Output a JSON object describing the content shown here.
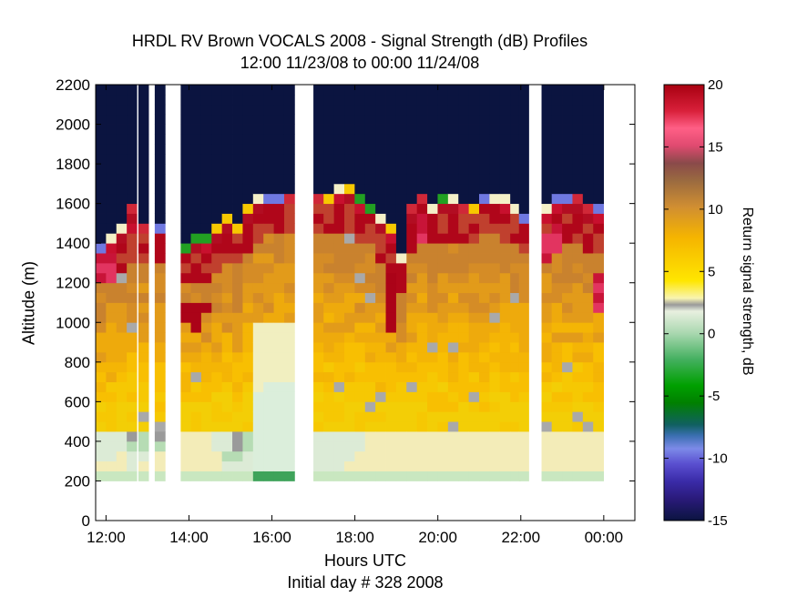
{
  "chart_data": {
    "type": "heatmap",
    "title": "HRDL RV Brown VOCALS 2008 - Signal Strength (dB) Profiles",
    "subtitle": "12:00 11/23/08 to 00:00 11/24/08",
    "xlabel": "Hours UTC",
    "xlabel2": "Initial day # 328  2008",
    "ylabel": "Altitude (m)",
    "x_unit": "hours UTC (elapsed from 12:00 11/23/08)",
    "xlim": [
      11.75,
      24.75
    ],
    "ylim": [
      0,
      2200
    ],
    "x_ticks": [
      12,
      14,
      16,
      18,
      20,
      22,
      24
    ],
    "x_tick_labels": [
      "12:00",
      "14:00",
      "16:00",
      "18:00",
      "20:00",
      "22:00",
      "00:00"
    ],
    "y_ticks": [
      0,
      200,
      400,
      600,
      800,
      1000,
      1200,
      1400,
      1600,
      1800,
      2000,
      2200
    ],
    "colorbar": {
      "label": "Return signal strength, dB",
      "range": [
        -15,
        20
      ],
      "ticks": [
        -15,
        -10,
        -5,
        0,
        5,
        10,
        15,
        20
      ]
    },
    "gate_bottom_m": 200,
    "gate_top_m": 2200,
    "gate_height_m": 50,
    "profile_width_h": 0.25,
    "gaps_h": [
      [
        12.75,
        12.78
      ],
      [
        13.13,
        13.16
      ],
      [
        13.5,
        13.8
      ],
      [
        16.75,
        17.0
      ],
      [
        22.2,
        22.5
      ],
      [
        24.1,
        24.2
      ]
    ],
    "profiles": [
      {
        "t": 11.875,
        "top": 1400,
        "pbl": 1330,
        "dip": [],
        "sfc": [
          0,
          0,
          1,
          1
        ],
        "cloud": [
          1180,
          1340
        ],
        "pure": false
      },
      {
        "t": 12.125,
        "top": 1430,
        "pbl": 1350,
        "dip": [],
        "sfc": [
          0,
          0,
          1,
          1
        ],
        "cloud": [
          1220,
          1360
        ],
        "pure": false
      },
      {
        "t": 12.375,
        "top": 1470,
        "pbl": 1400,
        "dip": [],
        "sfc": [
          0,
          0,
          0,
          1
        ],
        "cloud": [],
        "pure": false
      },
      {
        "t": 12.625,
        "top": 1580,
        "pbl": 1450,
        "dip": [],
        "sfc": [
          0,
          1,
          1,
          2
        ],
        "cloud": [],
        "pure": false
      },
      {
        "t": 12.9,
        "top": 1500,
        "pbl": 1440,
        "dip": [],
        "sfc": [
          0,
          0,
          1,
          2
        ],
        "cloud": [],
        "pure": false
      },
      {
        "t": 13.3,
        "top": 1490,
        "pbl": 1430,
        "dip": [],
        "sfc": [
          0,
          0,
          0,
          2
        ],
        "cloud": [],
        "pure": false
      },
      {
        "t": 13.92,
        "top": 1370,
        "pbl": 1320,
        "dip": [
          1000,
          1080
        ],
        "sfc": [
          0,
          0,
          0,
          0
        ],
        "cloud": [],
        "pure": false
      },
      {
        "t": 14.17,
        "top": 1410,
        "pbl": 1350,
        "dip": [
          950,
          1080
        ],
        "sfc": [
          0,
          0,
          0,
          0
        ],
        "cloud": [],
        "pure": false
      },
      {
        "t": 14.42,
        "top": 1410,
        "pbl": 1350,
        "dip": [
          1050,
          1100
        ],
        "sfc": [
          0,
          0,
          0,
          0
        ],
        "cloud": [],
        "pure": false
      },
      {
        "t": 14.67,
        "top": 1470,
        "pbl": 1400,
        "dip": [],
        "sfc": [
          1,
          0,
          0,
          1
        ],
        "cloud": [],
        "pure": false
      },
      {
        "t": 14.92,
        "top": 1530,
        "pbl": 1450,
        "dip": [],
        "sfc": [
          1,
          1,
          2,
          1
        ],
        "cloud": [],
        "pure": false
      },
      {
        "t": 15.17,
        "top": 1480,
        "pbl": 1420,
        "dip": [],
        "sfc": [
          1,
          1,
          2,
          2
        ],
        "cloud": [],
        "pure": false
      },
      {
        "t": 15.42,
        "top": 1600,
        "pbl": 1480,
        "dip": [],
        "sfc": [
          1,
          1,
          1,
          2
        ],
        "cloud": [],
        "pure": false
      },
      {
        "t": 15.67,
        "top": 1610,
        "pbl": 1550,
        "dip": [],
        "sfc": [
          1,
          2,
          2,
          2
        ],
        "cloud": [],
        "pure": true
      },
      {
        "t": 15.92,
        "top": 1630,
        "pbl": 1560,
        "dip": [],
        "sfc": [
          1,
          2,
          2,
          2
        ],
        "cloud": [],
        "pure": true
      },
      {
        "t": 16.17,
        "top": 1640,
        "pbl": 1570,
        "dip": [],
        "sfc": [
          1,
          2,
          2,
          2
        ],
        "cloud": [],
        "pure": true
      },
      {
        "t": 16.42,
        "top": 1640,
        "pbl": 1570,
        "dip": [],
        "sfc": [
          1,
          2,
          2,
          2
        ],
        "cloud": [],
        "pure": true
      },
      {
        "t": 17.12,
        "top": 1640,
        "pbl": 1570,
        "dip": [],
        "sfc": [
          0,
          1,
          1,
          1
        ],
        "cloud": [],
        "pure": false
      },
      {
        "t": 17.37,
        "top": 1650,
        "pbl": 1570,
        "dip": [],
        "sfc": [
          0,
          1,
          1,
          1
        ],
        "cloud": [],
        "pure": false
      },
      {
        "t": 17.62,
        "top": 1660,
        "pbl": 1560,
        "dip": [],
        "sfc": [
          0,
          1,
          1,
          1
        ],
        "cloud": [],
        "pure": false
      },
      {
        "t": 17.87,
        "top": 1670,
        "pbl": 1560,
        "dip": [],
        "sfc": [
          0,
          0,
          1,
          1
        ],
        "cloud": [],
        "pure": false
      },
      {
        "t": 18.12,
        "top": 1640,
        "pbl": 1550,
        "dip": [],
        "sfc": [
          0,
          0,
          0,
          1
        ],
        "cloud": [],
        "pure": false
      },
      {
        "t": 18.37,
        "top": 1590,
        "pbl": 1520,
        "dip": [],
        "sfc": [
          0,
          0,
          0,
          0
        ],
        "cloud": [],
        "pure": false
      },
      {
        "t": 18.62,
        "top": 1520,
        "pbl": 1450,
        "dip": [],
        "sfc": [
          0,
          0,
          0,
          0
        ],
        "cloud": [],
        "pure": false
      },
      {
        "t": 18.87,
        "top": 1480,
        "pbl": 1380,
        "dip": [
          950,
          1250
        ],
        "sfc": [
          0,
          0,
          0,
          0
        ],
        "cloud": [],
        "pure": false
      },
      {
        "t": 19.12,
        "top": 1330,
        "pbl": 1290,
        "dip": [],
        "sfc": [
          0,
          0,
          0,
          0
        ],
        "cloud": [],
        "pure": false
      },
      {
        "t": 19.37,
        "top": 1560,
        "pbl": 1500,
        "dip": [],
        "sfc": [
          0,
          0,
          0,
          0
        ],
        "cloud": [],
        "pure": false
      },
      {
        "t": 19.62,
        "top": 1640,
        "pbl": 1560,
        "dip": [],
        "sfc": [
          0,
          0,
          0,
          0
        ],
        "cloud": [
          1400,
          1560
        ],
        "pure": false
      },
      {
        "t": 19.87,
        "top": 1590,
        "pbl": 1540,
        "dip": [],
        "sfc": [
          0,
          0,
          0,
          0
        ],
        "cloud": [],
        "pure": false
      },
      {
        "t": 20.12,
        "top": 1610,
        "pbl": 1550,
        "dip": [],
        "sfc": [
          0,
          0,
          0,
          0
        ],
        "cloud": [],
        "pure": false
      },
      {
        "t": 20.37,
        "top": 1610,
        "pbl": 1550,
        "dip": [],
        "sfc": [
          0,
          0,
          0,
          0
        ],
        "cloud": [],
        "pure": false
      },
      {
        "t": 20.62,
        "top": 1590,
        "pbl": 1530,
        "dip": [],
        "sfc": [
          0,
          0,
          0,
          0
        ],
        "cloud": [],
        "pure": false
      },
      {
        "t": 20.87,
        "top": 1600,
        "pbl": 1530,
        "dip": [],
        "sfc": [
          0,
          0,
          0,
          0
        ],
        "cloud": [],
        "pure": false
      },
      {
        "t": 21.12,
        "top": 1620,
        "pbl": 1560,
        "dip": [],
        "sfc": [
          0,
          0,
          0,
          0
        ],
        "cloud": [],
        "pure": false
      },
      {
        "t": 21.37,
        "top": 1620,
        "pbl": 1560,
        "dip": [],
        "sfc": [
          0,
          0,
          0,
          0
        ],
        "cloud": [],
        "pure": false
      },
      {
        "t": 21.62,
        "top": 1610,
        "pbl": 1550,
        "dip": [],
        "sfc": [
          0,
          0,
          0,
          0
        ],
        "cloud": [],
        "pure": false
      },
      {
        "t": 21.87,
        "top": 1580,
        "pbl": 1520,
        "dip": [],
        "sfc": [
          0,
          0,
          0,
          0
        ],
        "cloud": [],
        "pure": false
      },
      {
        "t": 22.08,
        "top": 1540,
        "pbl": 1480,
        "dip": [],
        "sfc": [
          0,
          0,
          0,
          0
        ],
        "cloud": [],
        "pure": false
      },
      {
        "t": 22.62,
        "top": 1600,
        "pbl": 1500,
        "dip": [],
        "sfc": [
          0,
          0,
          0,
          0
        ],
        "cloud": [
          1300,
          1470
        ],
        "pure": false
      },
      {
        "t": 22.87,
        "top": 1620,
        "pbl": 1520,
        "dip": [],
        "sfc": [
          0,
          0,
          0,
          0
        ],
        "cloud": [
          1350,
          1480
        ],
        "pure": false
      },
      {
        "t": 23.12,
        "top": 1620,
        "pbl": 1520,
        "dip": [],
        "sfc": [
          0,
          0,
          0,
          0
        ],
        "cloud": [],
        "pure": false
      },
      {
        "t": 23.37,
        "top": 1620,
        "pbl": 1510,
        "dip": [],
        "sfc": [
          0,
          0,
          0,
          0
        ],
        "cloud": [],
        "pure": false
      },
      {
        "t": 23.62,
        "top": 1590,
        "pbl": 1490,
        "dip": [],
        "sfc": [
          0,
          0,
          0,
          0
        ],
        "cloud": [],
        "pure": false
      },
      {
        "t": 23.87,
        "top": 1600,
        "pbl": 1480,
        "dip": [],
        "sfc": [
          0,
          0,
          0,
          0
        ],
        "cloud": [
          1060,
          1240
        ],
        "pure": false
      }
    ]
  }
}
